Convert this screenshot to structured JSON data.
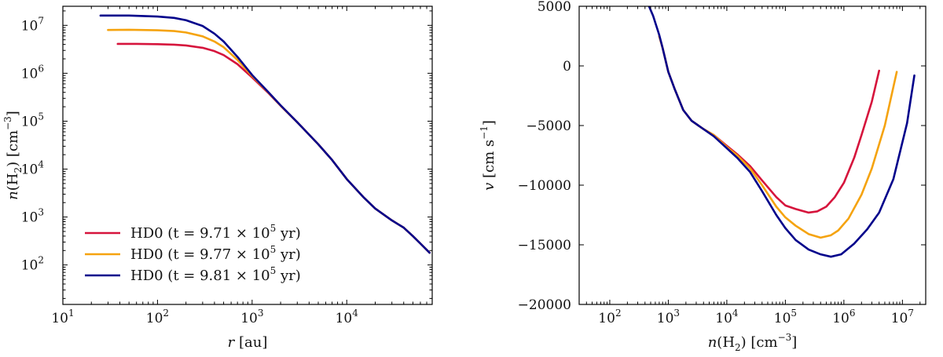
{
  "chart_data": [
    {
      "type": "line",
      "x_scale": "log",
      "y_scale": "log",
      "xlabel": "r [au]",
      "ylabel": "n(H2) [cm^-3]",
      "xlim": [
        10,
        80000
      ],
      "ylim": [
        15,
        25000000
      ],
      "x_ticks": [
        10,
        100,
        1000,
        10000
      ],
      "y_ticks": [
        100,
        1000,
        10000,
        100000,
        1000000,
        10000000
      ],
      "grid": false,
      "legend": "bottom-left",
      "series": [
        {
          "name": "HD0 (t = 9.71 × 10^5 yr)",
          "color": "#d6143c",
          "x": [
            38,
            60,
            100,
            150,
            200,
            300,
            400,
            500,
            700,
            1000,
            1500,
            2000,
            3000,
            5000,
            7000,
            10000,
            15000,
            20000,
            30000,
            40000,
            50000,
            60000,
            75000
          ],
          "y": [
            4100000,
            4100000,
            4050000,
            3950000,
            3800000,
            3400000,
            2900000,
            2400000,
            1550000,
            820000,
            380000,
            210000,
            95000,
            33000,
            15500,
            6200,
            2600,
            1500,
            850,
            600,
            400,
            280,
            180
          ]
        },
        {
          "name": "HD0 (t = 9.77 × 10^5 yr)",
          "color": "#f5a30f",
          "x": [
            30,
            50,
            100,
            150,
            200,
            300,
            400,
            500,
            700,
            1000,
            1500,
            2000,
            3000,
            5000,
            7000,
            10000,
            15000,
            20000,
            30000,
            40000,
            50000,
            60000,
            75000
          ],
          "y": [
            8000000,
            8100000,
            7900000,
            7600000,
            7100000,
            5900000,
            4600000,
            3500000,
            1900000,
            880000,
            390000,
            212000,
            95000,
            33000,
            15500,
            6200,
            2600,
            1500,
            850,
            600,
            400,
            280,
            180
          ]
        },
        {
          "name": "HD0 (t = 9.81 × 10^5 yr)",
          "color": "#00008b",
          "x": [
            25,
            50,
            100,
            150,
            200,
            300,
            400,
            500,
            700,
            1000,
            1500,
            2000,
            3000,
            5000,
            7000,
            10000,
            15000,
            20000,
            30000,
            40000,
            50000,
            60000,
            75000
          ],
          "y": [
            16000000,
            16000000,
            15300000,
            14300000,
            12800000,
            9700000,
            6700000,
            4600000,
            2200000,
            920000,
            395000,
            214000,
            95000,
            33000,
            15500,
            6200,
            2600,
            1500,
            850,
            600,
            400,
            280,
            180
          ]
        }
      ]
    },
    {
      "type": "line",
      "x_scale": "log",
      "y_scale": "linear",
      "xlabel": "n(H2) [cm^-3]",
      "ylabel": "v [cm s^-1]",
      "xlim": [
        30,
        25000000
      ],
      "ylim": [
        -20000,
        5000
      ],
      "x_ticks": [
        100,
        1000,
        10000,
        100000,
        1000000,
        10000000
      ],
      "y_ticks": [
        5000,
        0,
        -5000,
        -10000,
        -15000,
        -20000
      ],
      "grid": false,
      "series": [
        {
          "name": "HD0 (t = 9.71 × 10^5 yr)",
          "color": "#d6143c",
          "x": [
            700,
            800,
            1000,
            1300,
            1800,
            2500,
            4000,
            6000,
            10000,
            15000,
            25000,
            40000,
            70000,
            100000,
            150000,
            250000,
            350000,
            500000,
            700000,
            1000000,
            1500000,
            2000000,
            3000000,
            4000000
          ],
          "y": [
            2500,
            1500,
            -500,
            -2000,
            -3700,
            -4600,
            -5300,
            -5800,
            -6700,
            -7400,
            -8400,
            -9600,
            -11000,
            -11700,
            -12000,
            -12300,
            -12200,
            -11800,
            -11000,
            -9800,
            -7700,
            -5800,
            -3000,
            -400
          ]
        },
        {
          "name": "HD0 (t = 9.77 × 10^5 yr)",
          "color": "#f5a30f",
          "x": [
            700,
            800,
            1000,
            1300,
            1800,
            2500,
            4000,
            6000,
            10000,
            15000,
            25000,
            40000,
            70000,
            100000,
            150000,
            250000,
            400000,
            600000,
            800000,
            1200000,
            2000000,
            3000000,
            5000000,
            8000000
          ],
          "y": [
            2500,
            1500,
            -500,
            -2000,
            -3700,
            -4600,
            -5300,
            -5800,
            -6800,
            -7500,
            -8600,
            -10000,
            -11800,
            -12700,
            -13400,
            -14100,
            -14400,
            -14200,
            -13800,
            -12800,
            -10800,
            -8600,
            -5000,
            -500
          ]
        },
        {
          "name": "HD0 (t = 9.81 × 10^5 yr)",
          "color": "#00008b",
          "x": [
            450,
            550,
            700,
            800,
            1000,
            1300,
            1800,
            2500,
            4000,
            6000,
            10000,
            15000,
            25000,
            40000,
            70000,
            100000,
            150000,
            250000,
            400000,
            600000,
            900000,
            1500000,
            2500000,
            4000000,
            7000000,
            12000000,
            16000000
          ],
          "y": [
            5200,
            4200,
            2600,
            1500,
            -500,
            -2000,
            -3700,
            -4600,
            -5300,
            -5900,
            -6900,
            -7700,
            -8900,
            -10500,
            -12500,
            -13600,
            -14600,
            -15400,
            -15800,
            -16000,
            -15800,
            -14900,
            -13700,
            -12300,
            -9500,
            -4800,
            -800
          ]
        }
      ]
    }
  ]
}
